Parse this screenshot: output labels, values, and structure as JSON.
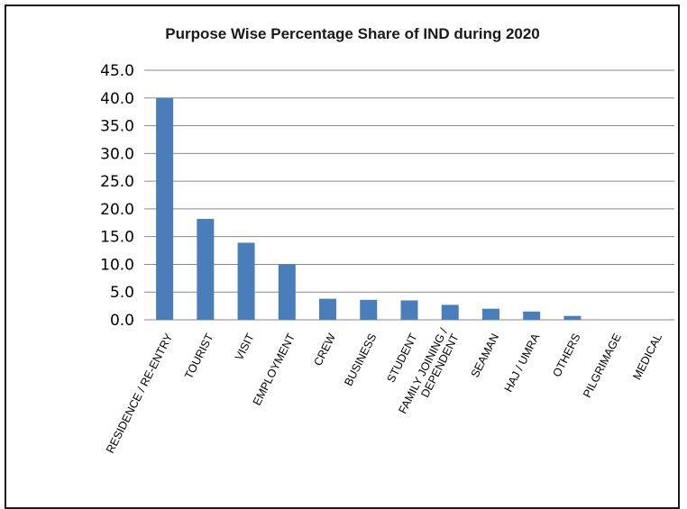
{
  "chart_data": {
    "type": "bar",
    "title": "Purpose Wise Percentage Share of IND during 2020",
    "xlabel": "",
    "ylabel": "",
    "categories": [
      [
        "RESIDENCE / RE-ENTRY"
      ],
      [
        "TOURIST"
      ],
      [
        "VISIT"
      ],
      [
        "EMPLOYMENT"
      ],
      [
        "CREW"
      ],
      [
        "BUSINESS"
      ],
      [
        "STUDENT"
      ],
      [
        "FAMILY JOINING /",
        "DEPENDENT"
      ],
      [
        "SEAMAN"
      ],
      [
        "HAJ / UMRA"
      ],
      [
        "OTHERS"
      ],
      [
        "PILGRIMAGE"
      ],
      [
        "MEDICAL"
      ]
    ],
    "values": [
      40.0,
      18.2,
      13.9,
      10.0,
      3.8,
      3.6,
      3.5,
      2.7,
      2.0,
      1.5,
      0.7,
      0.0,
      0.0
    ],
    "yticks": [
      "0.0",
      "5.0",
      "10.0",
      "15.0",
      "20.0",
      "25.0",
      "30.0",
      "35.0",
      "40.0",
      "45.0"
    ],
    "ylim": [
      0,
      45
    ],
    "grid": true,
    "legend": "none",
    "colors": {
      "bar": "#4a7ebb",
      "grid": "#8a8a8a"
    }
  }
}
